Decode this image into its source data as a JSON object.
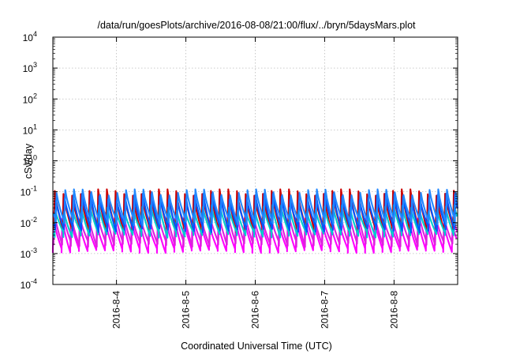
{
  "chart_data": {
    "type": "line",
    "title": "/data/run/goesPlots/archive/2016-08-08/21:00/flux/../bryn/5daysMars.plot",
    "xlabel": "Coordinated Universal Time (UTC)",
    "ylabel": "cSv/day",
    "yscale": "log",
    "ylim": [
      0.0001,
      10000
    ],
    "xlim": [
      "2016-08-03T02:00",
      "2016-08-08T22:00"
    ],
    "x_ticks": [
      "2016-8-4",
      "2016-8-5",
      "2016-8-6",
      "2016-8-7",
      "2016-8-8"
    ],
    "y_ticks": [
      {
        "base": "10",
        "exp": "4"
      },
      {
        "base": "10",
        "exp": "3"
      },
      {
        "base": "10",
        "exp": "2"
      },
      {
        "base": "10",
        "exp": "1"
      },
      {
        "base": "10",
        "exp": "0"
      },
      {
        "base": "10",
        "exp": "-1"
      },
      {
        "base": "10",
        "exp": "-2"
      },
      {
        "base": "10",
        "exp": "-3"
      },
      {
        "base": "10",
        "exp": "-4"
      }
    ],
    "grid": true,
    "legend": "none",
    "pattern": {
      "period_hours": 3,
      "note": "sawtooth per series; peaks near 0.1 cSv/day, troughs near 0.001 cSv/day"
    },
    "series": [
      {
        "color": "#ff00ff",
        "peak": 0.011,
        "trough": 0.0012
      },
      {
        "color": "#dd22dd",
        "peak": 0.018,
        "trough": 0.002
      },
      {
        "color": "#cc0000",
        "peak": 0.1,
        "trough": 0.006
      },
      {
        "color": "#00cccc",
        "peak": 0.03,
        "trough": 0.004
      },
      {
        "color": "#0055ff",
        "peak": 0.07,
        "trough": 0.006
      },
      {
        "color": "#2288ff",
        "peak": 0.1,
        "trough": 0.01
      }
    ]
  }
}
